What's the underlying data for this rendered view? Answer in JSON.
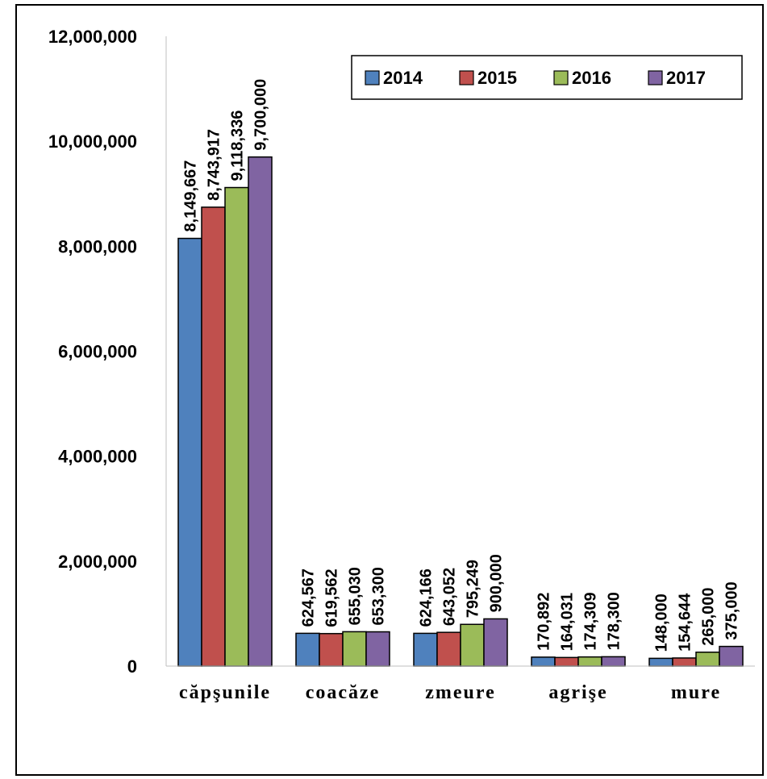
{
  "chart_data": {
    "type": "bar",
    "categories": [
      "căpşunile",
      "coacăze",
      "zmeure",
      "agrişe",
      "mure"
    ],
    "series": [
      {
        "name": "2014",
        "color": "#4F81BD",
        "values": [
          8149667,
          624567,
          624166,
          170892,
          148000
        ]
      },
      {
        "name": "2015",
        "color": "#C0504D",
        "values": [
          8743917,
          619562,
          643052,
          164031,
          154644
        ]
      },
      {
        "name": "2016",
        "color": "#9BBB59",
        "values": [
          9118336,
          655030,
          795249,
          174309,
          265000
        ]
      },
      {
        "name": "2017",
        "color": "#8064A2",
        "values": [
          9700000,
          653300,
          900000,
          178300,
          375000
        ]
      }
    ],
    "value_labels": [
      [
        "8,149,667",
        "624,567",
        "624,166",
        "170,892",
        "148,000"
      ],
      [
        "8,743,917",
        "619,562",
        "643,052",
        "164,031",
        "154,644"
      ],
      [
        "9,118,336",
        "655,030",
        "795,249",
        "174,309",
        "265,000"
      ],
      [
        "9,700,000",
        "653,300",
        "900,000",
        "178,300",
        "375,000"
      ]
    ],
    "yticks": [
      0,
      2000000,
      4000000,
      6000000,
      8000000,
      10000000,
      12000000
    ],
    "ytick_labels": [
      "0",
      "2,000,000",
      "4,000,000",
      "6,000,000",
      "8,000,000",
      "10,000,000",
      "12,000,000"
    ],
    "ylim": [
      0,
      12000000
    ],
    "title": "",
    "xlabel": "",
    "ylabel": "",
    "grid": false,
    "legend_position": "top-right"
  }
}
